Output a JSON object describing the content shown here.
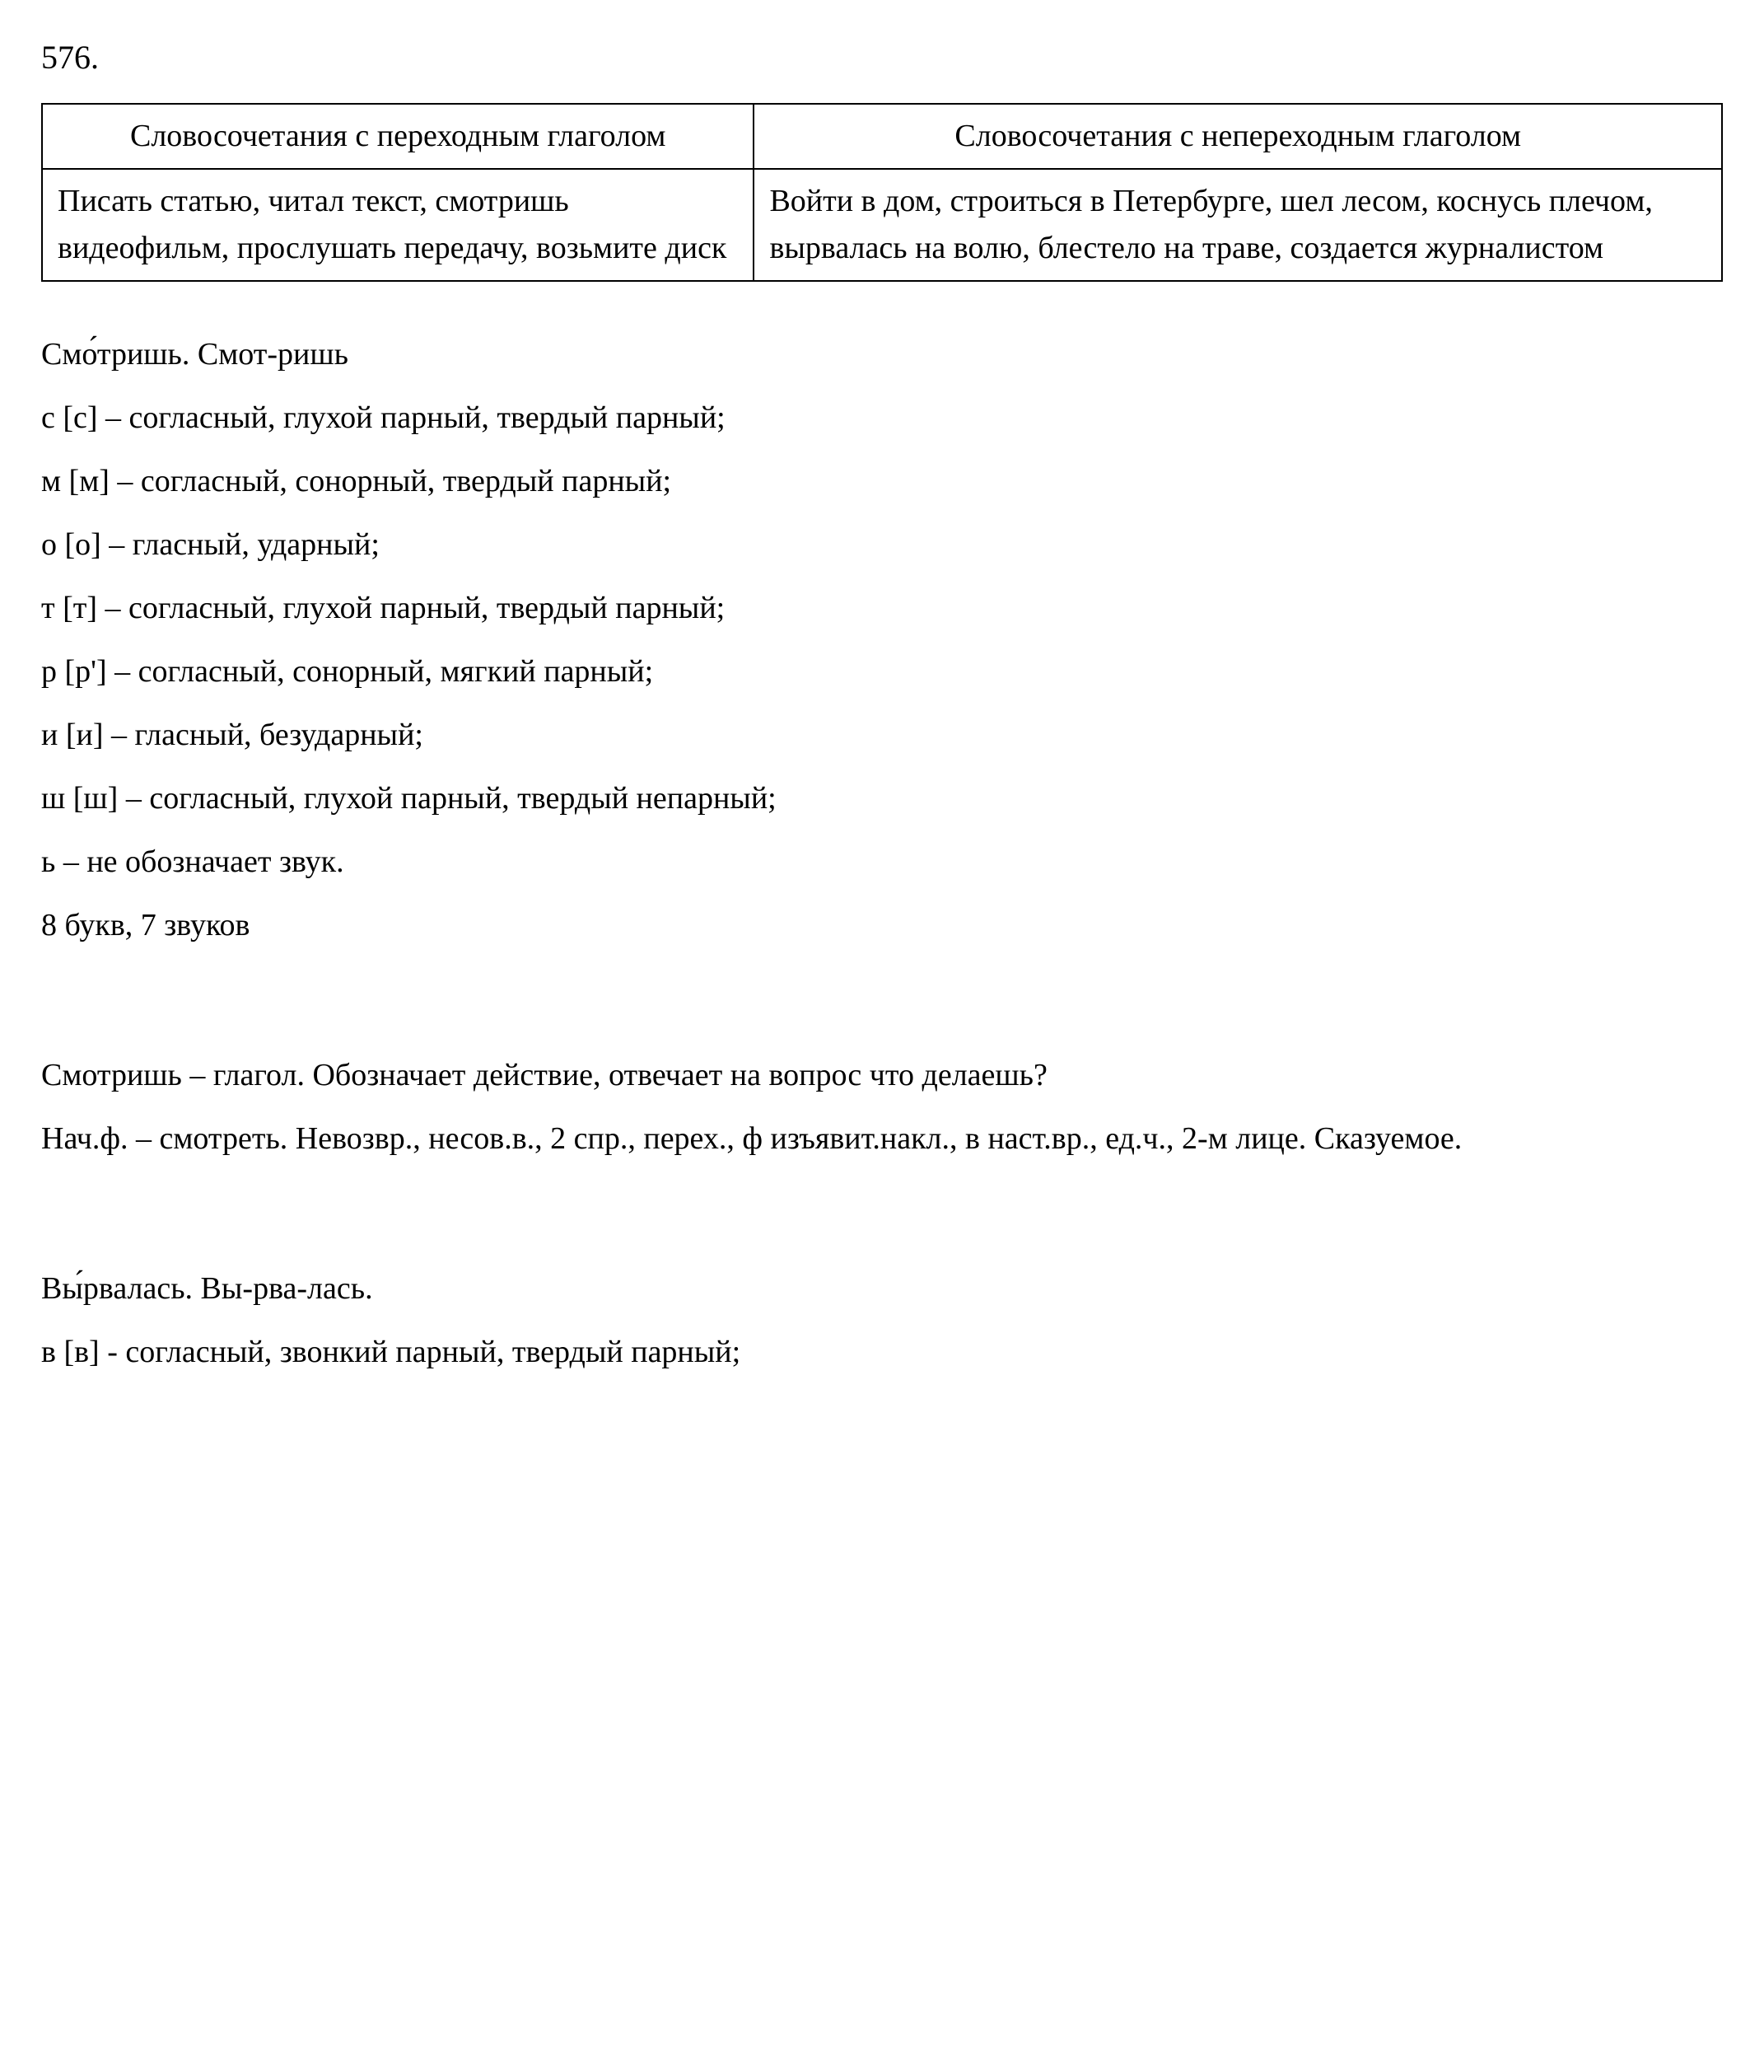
{
  "exercise_number": "576.",
  "table": {
    "header_left": "Словосочетания с переходным глаголом",
    "header_right": "Словосочетания с непереходным глаголом",
    "content_left": "Писать статью, читал текст, смотришь видеофильм, прослушать передачу, возьмите диск",
    "content_right": "Войти в дом, строиться в Петербурге, шел лесом, коснусь плечом, вырвалась на волю, блестело на траве, создается журналистом"
  },
  "word1": {
    "title": "Смо́тришь. Смот-ришь",
    "phonetic": [
      "с [с]  – согласный, глухой парный, твердый парный;",
      "м [м] – согласный, сонорный, твердый парный;",
      "о [о] – гласный, ударный;",
      "т [т] – согласный, глухой парный, твердый парный;",
      "р [р'] – согласный, сонорный, мягкий парный;",
      "и [и] – гласный, безударный;",
      "ш [ш] – согласный, глухой парный, твердый непарный;",
      "ь – не обозначает звук."
    ],
    "count": "8 букв, 7 звуков"
  },
  "morph": {
    "line1": "Смотришь – глагол. Обозначает действие, отвечает на вопрос что делаешь?",
    "line2": "Нач.ф. – смотреть. Невозвр., несов.в., 2 спр., перех., ф изъявит.накл., в наст.вр., ед.ч., 2-м лице. Сказуемое."
  },
  "word2": {
    "title": "Вы́рвалась. Вы-рва-лась.",
    "phonetic": [
      "в [в]  - согласный, звонкий парный, твердый парный;"
    ]
  }
}
